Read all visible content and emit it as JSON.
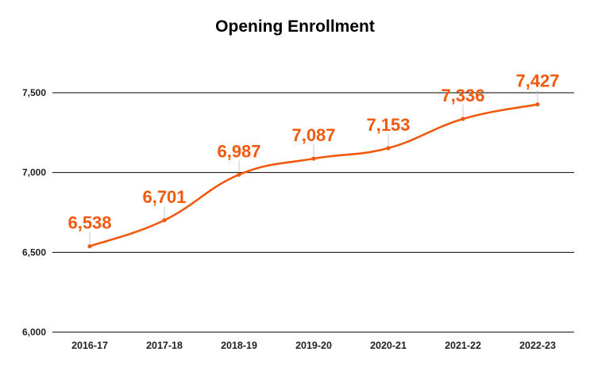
{
  "chart_data": {
    "type": "line",
    "title": "Opening Enrollment",
    "xlabel": "",
    "ylabel": "",
    "categories": [
      "2016-17",
      "2017-18",
      "2018-19",
      "2019-20",
      "2020-21",
      "2021-22",
      "2022-23"
    ],
    "series": [
      {
        "values": [
          6538,
          6701,
          6987,
          7087,
          7153,
          7336,
          7427
        ],
        "color": "#f15a0e"
      }
    ],
    "data_labels": [
      "6,538",
      "6,701",
      "6,987",
      "7,087",
      "7,153",
      "7,336",
      "7,427"
    ],
    "ylim": [
      6000,
      7500
    ],
    "yticks": [
      {
        "value": 6000,
        "label": "6,000"
      },
      {
        "value": 6500,
        "label": "6,500"
      },
      {
        "value": 7000,
        "label": "7,000"
      },
      {
        "value": 7500,
        "label": "7,500"
      }
    ],
    "grid": true,
    "smooth": true,
    "legend": "none",
    "colors": {
      "line": "#f15a0e",
      "label": "#f15a0e",
      "grid": "#000000"
    }
  }
}
